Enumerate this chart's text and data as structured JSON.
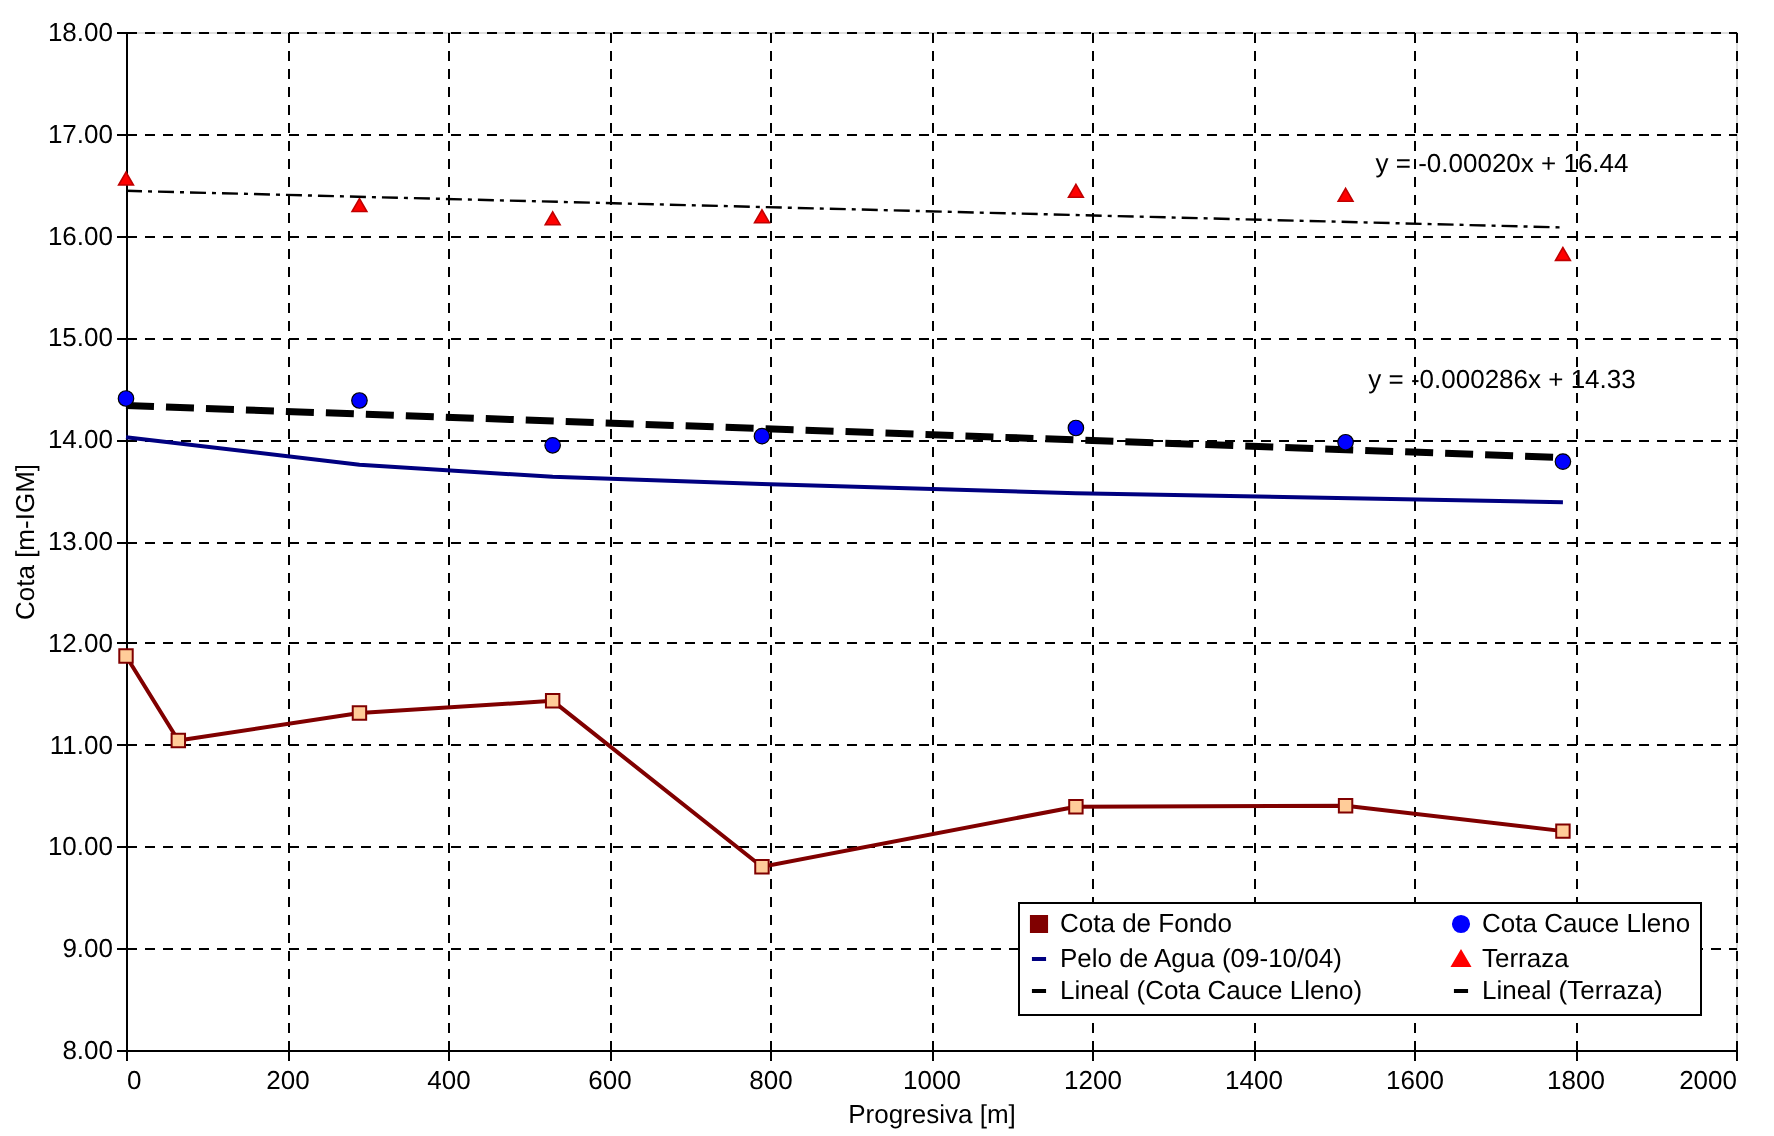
{
  "chart_data": {
    "type": "line",
    "xlabel": "Progresiva [m]",
    "ylabel": "Cota [m-IGM]",
    "xlim": [
      0,
      2000
    ],
    "xticks": [
      0,
      200,
      400,
      600,
      800,
      1000,
      1200,
      1400,
      1600,
      1800,
      2000
    ],
    "ylim": [
      8,
      18
    ],
    "yticks": [
      {
        "value": 8,
        "label": "8.00"
      },
      {
        "value": 9,
        "label": "9.00"
      },
      {
        "value": 10,
        "label": "10.00"
      },
      {
        "value": 11,
        "label": "11.00"
      },
      {
        "value": 12,
        "label": "12.00"
      },
      {
        "value": 13,
        "label": "13.00"
      },
      {
        "value": 14,
        "label": "14.00"
      },
      {
        "value": 15,
        "label": "15.00"
      },
      {
        "value": 16,
        "label": "16.00"
      },
      {
        "value": 17,
        "label": "17.00"
      },
      {
        "value": 18,
        "label": "18.00"
      }
    ],
    "grid": true,
    "legend": "bottom right",
    "series": [
      {
        "name": "Cota de Fondo",
        "color": "#800000",
        "marker": "square",
        "line_style": "solid",
        "x": [
          0,
          65,
          290,
          530,
          790,
          1180,
          1515,
          1785
        ],
        "values": [
          11.87,
          11.04,
          11.31,
          11.43,
          9.8,
          10.39,
          10.4,
          10.15
        ]
      },
      {
        "name": "Pelo de Agua (09-10/04)",
        "color": "#000080",
        "line_style": "solid",
        "x": [
          0,
          290,
          530,
          790,
          1180,
          1785
        ],
        "values": [
          14.02,
          13.75,
          13.63,
          13.56,
          13.47,
          13.38
        ]
      },
      {
        "name": "Lineal (Cota Cauce Lleno)",
        "color": "#000000",
        "line_style": "dashed",
        "x": [
          0,
          1785
        ],
        "values": [
          14.33,
          13.82
        ]
      },
      {
        "name": "Cota Cauce Lleno",
        "type": "scatter",
        "color": "#0000ff",
        "marker": "circle",
        "x": [
          0,
          290,
          530,
          790,
          1180,
          1515,
          1785
        ],
        "values": [
          14.4,
          14.38,
          13.94,
          14.03,
          14.11,
          13.97,
          13.78
        ]
      },
      {
        "name": "Terraza",
        "type": "scatter",
        "color": "#ff0000",
        "marker": "triangle",
        "x": [
          0,
          290,
          530,
          790,
          1180,
          1515,
          1785
        ],
        "values": [
          16.56,
          16.3,
          16.17,
          16.19,
          16.44,
          16.4,
          15.82
        ]
      },
      {
        "name": "Lineal (Terraza)",
        "color": "#000000",
        "line_style": "dashdot",
        "x": [
          0,
          1785
        ],
        "values": [
          16.44,
          16.08
        ]
      }
    ],
    "annotations": [
      "y = -0.00020x + 16.44",
      "y = -0.000286x + 14.33"
    ]
  }
}
